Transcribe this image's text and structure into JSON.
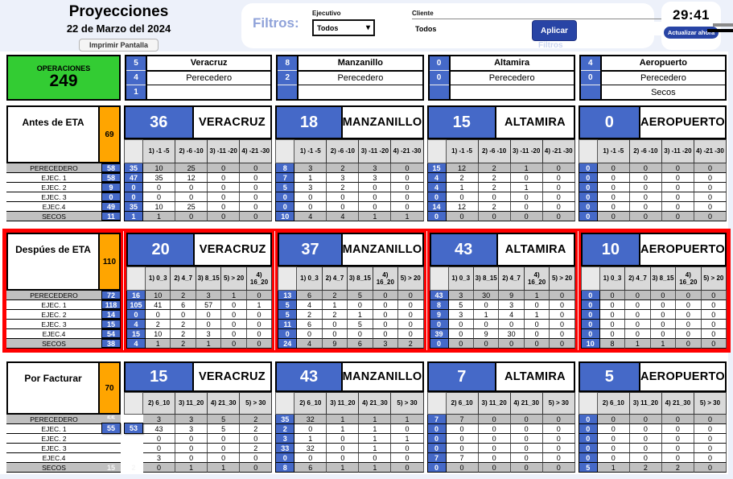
{
  "header": {
    "title": "Proyecciones",
    "date": "22 de Marzo del 2024",
    "print_button": "Imprimir Pantalla",
    "filters": {
      "label": "Filtros:",
      "ejecutivo_label": "Ejecutivo",
      "ejecutivo_value": "Todos",
      "cliente_label": "Cliente",
      "cliente_value": "Todos",
      "apply_button": "Aplicar",
      "ghost_label": "Filtros"
    },
    "timer": "29:41",
    "refresh_button": "Actualizar ahora"
  },
  "colors": {
    "blue": "#4569c8",
    "orange": "#ffa500",
    "green": "#33cc33",
    "dark_blue_button": "#2844a5",
    "red_highlight": "#ff0000",
    "gray_row": "#c0c0c0",
    "header_gray": "#d9d9d9",
    "filtros_text": "#8fa2d9"
  },
  "summary": {
    "operaciones_label": "OPERACIONES",
    "operaciones_value": "249",
    "ports": [
      {
        "rows": [
          {
            "count": "5",
            "label": "Veracruz"
          },
          {
            "count": "4",
            "label": "Perecedero"
          },
          {
            "count": "1",
            "label": ""
          }
        ]
      },
      {
        "rows": [
          {
            "count": "8",
            "label": "Manzanillo"
          },
          {
            "count": "2",
            "label": "Perecedero"
          },
          {
            "count": "",
            "label": ""
          }
        ]
      },
      {
        "rows": [
          {
            "count": "0",
            "label": "Altamira"
          },
          {
            "count": "0",
            "label": "Perecedero"
          },
          {
            "count": "",
            "label": ""
          }
        ]
      },
      {
        "rows": [
          {
            "count": "4",
            "label": "Aeropuerto"
          },
          {
            "count": "0",
            "label": "Perecedero"
          },
          {
            "count": "",
            "label": "Secos"
          }
        ]
      }
    ]
  },
  "sections": [
    {
      "name": "Antes de ETA",
      "total": "69",
      "row_labels": [
        "PERECEDERO",
        "EJEC. 1",
        "EJEC. 2",
        "EJEC. 3",
        "EJEC.4",
        "SECOS"
      ],
      "row_totals": [
        "58",
        "58",
        "9",
        "0",
        "49",
        "11"
      ],
      "ports": [
        {
          "total": "36",
          "name": "VERACRUZ",
          "cols": [
            "1) -1 -5",
            "2) -6 -10",
            "3) -11 -20",
            "4) -21 -30"
          ],
          "sub": [
            "35",
            "47",
            "0",
            "0",
            "35",
            "1"
          ],
          "rows": [
            [
              "10",
              "25",
              "0",
              "0"
            ],
            [
              "35",
              "12",
              "0",
              "0"
            ],
            [
              "0",
              "0",
              "0",
              "0"
            ],
            [
              "0",
              "0",
              "0",
              "0"
            ],
            [
              "10",
              "25",
              "0",
              "0"
            ],
            [
              "1",
              "0",
              "0",
              "0"
            ]
          ]
        },
        {
          "total": "18",
          "name": "MANZANILLO",
          "cols": [
            "1) -1 -5",
            "2) -6 -10",
            "3) -11 -20",
            "4) -21 -30"
          ],
          "sub": [
            "8",
            "7",
            "5",
            "0",
            "0",
            "10"
          ],
          "rows": [
            [
              "3",
              "2",
              "3",
              "0"
            ],
            [
              "1",
              "3",
              "3",
              "0"
            ],
            [
              "3",
              "2",
              "0",
              "0"
            ],
            [
              "0",
              "0",
              "0",
              "0"
            ],
            [
              "0",
              "0",
              "0",
              "0"
            ],
            [
              "4",
              "4",
              "1",
              "1"
            ]
          ]
        },
        {
          "total": "15",
          "name": "ALTAMIRA",
          "cols": [
            "1) -1 -5",
            "2) -6 -10",
            "3) -11 -20",
            "4) -21 -30"
          ],
          "sub": [
            "15",
            "4",
            "4",
            "0",
            "14",
            "0"
          ],
          "rows": [
            [
              "12",
              "2",
              "1",
              "0"
            ],
            [
              "2",
              "2",
              "0",
              "0"
            ],
            [
              "1",
              "2",
              "1",
              "0"
            ],
            [
              "0",
              "0",
              "0",
              "0"
            ],
            [
              "12",
              "2",
              "0",
              "0"
            ],
            [
              "0",
              "0",
              "0",
              "0"
            ]
          ]
        },
        {
          "total": "0",
          "name": "AEROPUERTO",
          "cols": [
            "1) -1 -5",
            "2) -6 -10",
            "3) -11 -20",
            "4) -21 -30"
          ],
          "sub": [
            "0",
            "0",
            "0",
            "0",
            "0",
            "0"
          ],
          "rows": [
            [
              "0",
              "0",
              "0",
              "0"
            ],
            [
              "0",
              "0",
              "0",
              "0"
            ],
            [
              "0",
              "0",
              "0",
              "0"
            ],
            [
              "0",
              "0",
              "0",
              "0"
            ],
            [
              "0",
              "0",
              "0",
              "0"
            ],
            [
              "0",
              "0",
              "0",
              "0"
            ]
          ]
        }
      ]
    },
    {
      "name": "Despúes de ETA",
      "total": "110",
      "highlight": true,
      "row_labels": [
        "PERECEDERO",
        "EJEC. 1",
        "EJEC. 2",
        "EJEC. 3",
        "EJEC.4",
        "SECOS"
      ],
      "row_totals": [
        "72",
        "118",
        "14",
        "15",
        "54",
        "38"
      ],
      "ports": [
        {
          "total": "20",
          "name": "VERACRUZ",
          "cols": [
            "1) 0_3",
            "2) 4_7",
            "3) 8_15",
            "5) > 20",
            "4) 16_20"
          ],
          "sub": [
            "16",
            "105",
            "0",
            "4",
            "15",
            "4"
          ],
          "rows": [
            [
              "10",
              "2",
              "3",
              "1",
              "0"
            ],
            [
              "41",
              "6",
              "57",
              "0",
              "1"
            ],
            [
              "0",
              "0",
              "0",
              "0",
              "0"
            ],
            [
              "2",
              "2",
              "0",
              "0",
              "0"
            ],
            [
              "10",
              "2",
              "3",
              "0",
              "0"
            ],
            [
              "1",
              "2",
              "1",
              "0",
              "0"
            ]
          ]
        },
        {
          "total": "37",
          "name": "MANZANILLO",
          "cols": [
            "1) 0_3",
            "2) 4_7",
            "3) 8_15",
            "4) 16_20",
            "5) > 20"
          ],
          "sub": [
            "13",
            "5",
            "5",
            "11",
            "0",
            "24"
          ],
          "rows": [
            [
              "6",
              "2",
              "5",
              "0",
              "0"
            ],
            [
              "4",
              "1",
              "0",
              "0",
              "0"
            ],
            [
              "2",
              "2",
              "1",
              "0",
              "0"
            ],
            [
              "6",
              "0",
              "5",
              "0",
              "0"
            ],
            [
              "0",
              "0",
              "0",
              "0",
              "0"
            ],
            [
              "4",
              "9",
              "6",
              "3",
              "2"
            ]
          ]
        },
        {
          "total": "43",
          "name": "ALTAMIRA",
          "cols": [
            "1) 0_3",
            "3) 8_15",
            "2) 4_7",
            "4) 16_20",
            "5) > 20"
          ],
          "sub": [
            "43",
            "8",
            "9",
            "0",
            "39",
            "0"
          ],
          "rows": [
            [
              "3",
              "30",
              "9",
              "1",
              "0"
            ],
            [
              "5",
              "0",
              "3",
              "0",
              "0"
            ],
            [
              "3",
              "1",
              "4",
              "1",
              "0"
            ],
            [
              "0",
              "0",
              "0",
              "0",
              "0"
            ],
            [
              "0",
              "9",
              "30",
              "0",
              "0"
            ],
            [
              "0",
              "0",
              "0",
              "0",
              "0"
            ]
          ]
        },
        {
          "total": "10",
          "name": "AEROPUERTO",
          "cols": [
            "1) 0_3",
            "2) 4_7",
            "3) 8_15",
            "4) 16_20",
            "5) > 20"
          ],
          "sub": [
            "0",
            "0",
            "0",
            "0",
            "0",
            "10"
          ],
          "rows": [
            [
              "0",
              "0",
              "0",
              "0",
              "0"
            ],
            [
              "0",
              "0",
              "0",
              "0",
              "0"
            ],
            [
              "0",
              "0",
              "0",
              "0",
              "0"
            ],
            [
              "0",
              "0",
              "0",
              "0",
              "0"
            ],
            [
              "0",
              "0",
              "0",
              "0",
              "0"
            ],
            [
              "8",
              "1",
              "1",
              "0",
              "0"
            ]
          ]
        }
      ]
    },
    {
      "name": "Por Facturar",
      "total": "70",
      "row_labels": [
        "PERECEDERO",
        "EJEC. 1",
        "EJEC. 2",
        "EJEC. 3",
        "EJEC.4",
        "SECOS"
      ],
      "row_totals": [
        "55",
        "55",
        "",
        "",
        "",
        "15"
      ],
      "left_total_styles": [
        "cut",
        "raised",
        "none",
        "none",
        "none",
        "flat"
      ],
      "ports": [
        {
          "total": "15",
          "name": "VERACRUZ",
          "cols": [
            "2) 6_10",
            "3) 11_20",
            "4) 21_30",
            "5) > 30"
          ],
          "sub": [
            "13",
            "53",
            "",
            "",
            "",
            "2"
          ],
          "sub_styles": [
            "cut",
            "raised",
            "none",
            "none",
            "none",
            "flat"
          ],
          "rows": [
            [
              "3",
              "3",
              "5",
              "2"
            ],
            [
              "43",
              "3",
              "5",
              "2"
            ],
            [
              "0",
              "0",
              "0",
              "0"
            ],
            [
              "0",
              "0",
              "0",
              "2"
            ],
            [
              "3",
              "0",
              "0",
              "0"
            ],
            [
              "0",
              "1",
              "1",
              "0"
            ]
          ]
        },
        {
          "total": "43",
          "name": "MANZANILLO",
          "cols": [
            "2) 6_10",
            "3) 11_20",
            "4) 21_30",
            "5) > 30"
          ],
          "sub": [
            "35",
            "2",
            "3",
            "33",
            "0",
            "8"
          ],
          "rows": [
            [
              "32",
              "1",
              "1",
              "1"
            ],
            [
              "0",
              "1",
              "1",
              "0"
            ],
            [
              "1",
              "0",
              "1",
              "1"
            ],
            [
              "32",
              "0",
              "1",
              "0"
            ],
            [
              "0",
              "0",
              "0",
              "0"
            ],
            [
              "6",
              "1",
              "1",
              "0"
            ]
          ]
        },
        {
          "total": "7",
          "name": "ALTAMIRA",
          "cols": [
            "2) 6_10",
            "3) 11_20",
            "4) 21_30",
            "5) > 30"
          ],
          "sub": [
            "7",
            "0",
            "0",
            "0",
            "7",
            "0"
          ],
          "rows": [
            [
              "7",
              "0",
              "0",
              "0"
            ],
            [
              "0",
              "0",
              "0",
              "0"
            ],
            [
              "0",
              "0",
              "0",
              "0"
            ],
            [
              "0",
              "0",
              "0",
              "0"
            ],
            [
              "7",
              "0",
              "0",
              "0"
            ],
            [
              "0",
              "0",
              "0",
              "0"
            ]
          ]
        },
        {
          "total": "5",
          "name": "AEROPUERTO",
          "cols": [
            "2) 6_10",
            "3) 11_20",
            "4) 21_30",
            "5) > 30"
          ],
          "sub": [
            "0",
            "0",
            "0",
            "0",
            "0",
            "5"
          ],
          "rows": [
            [
              "0",
              "0",
              "0",
              "0"
            ],
            [
              "0",
              "0",
              "0",
              "0"
            ],
            [
              "0",
              "0",
              "0",
              "0"
            ],
            [
              "0",
              "0",
              "0",
              "0"
            ],
            [
              "0",
              "0",
              "0",
              "0"
            ],
            [
              "1",
              "2",
              "2",
              "0"
            ]
          ]
        }
      ]
    }
  ]
}
